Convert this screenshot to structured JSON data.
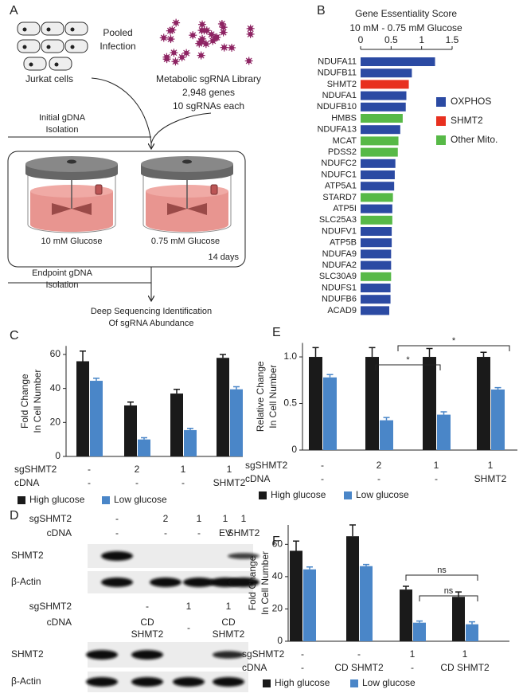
{
  "panel_labels": [
    "A",
    "B",
    "C",
    "D",
    "E",
    "F"
  ],
  "panel_a": {
    "infection": [
      "Pooled",
      "Infection"
    ],
    "cells": "Jurkat cells",
    "library": [
      "Metabolic sgRNA Library",
      "2,948 genes",
      "10 sgRNAs each"
    ],
    "initial": [
      "Initial gDNA",
      "Isolation"
    ],
    "conditions": [
      "10 mM Glucose",
      "0.75 mM Glucose"
    ],
    "duration": "14 days",
    "endpoint": [
      "Endpoint gDNA",
      "Isolation"
    ],
    "readout": [
      "Deep Sequencing Identification",
      "Of sgRNA Abundance"
    ]
  },
  "panel_d": {
    "blots": [
      {
        "rows": [
          {
            "label": "sgSHMT2",
            "lanes": [
              [
                "-"
              ],
              [
                "2"
              ],
              [
                "1"
              ],
              [
                "1"
              ],
              [
                "1"
              ]
            ]
          },
          {
            "label": "cDNA",
            "lanes": [
              [
                "-"
              ],
              [
                "-"
              ],
              [
                "-"
              ],
              [
                "EV"
              ],
              [
                "SHMT2"
              ]
            ]
          }
        ],
        "bands": [
          "SHMT2",
          "β-Actin"
        ]
      },
      {
        "rows": [
          {
            "label": "sgSHMT2",
            "lanes": [
              null,
              [
                "-"
              ],
              [
                "1"
              ],
              [
                "1"
              ]
            ]
          },
          {
            "label": "cDNA",
            "lanes": [
              null,
              [
                "CD",
                "SHMT2"
              ],
              [
                "-"
              ],
              [
                "CD",
                "SHMT2"
              ]
            ]
          }
        ],
        "bands": [
          "SHMT2",
          "β-Actin"
        ]
      }
    ]
  },
  "chart_data": [
    {
      "type": "barh",
      "title": "Gene Essentiality Score",
      "subtitle": "10 mM - 0.75 mM Glucose",
      "categories": [
        "NDUFA11",
        "NDUFB11",
        "SHMT2",
        "NDUFA1",
        "NDUFB10",
        "HMBS",
        "NDUFA13",
        "MCAT",
        "PDSS2",
        "NDUFC2",
        "NDUFC1",
        "ATP5A1",
        "STARD7",
        "ATP5I",
        "SLC25A3",
        "NDUFV1",
        "ATP5B",
        "NDUFA9",
        "NDUFA2",
        "SLC30A9",
        "NDUFS1",
        "NDUFB6",
        "ACAD9"
      ],
      "values": [
        1.22,
        0.84,
        0.79,
        0.75,
        0.74,
        0.69,
        0.65,
        0.62,
        0.61,
        0.57,
        0.56,
        0.55,
        0.53,
        0.52,
        0.52,
        0.51,
        0.51,
        0.5,
        0.5,
        0.5,
        0.49,
        0.49,
        0.47
      ],
      "colors": [
        "#2b4aa3",
        "#2b4aa3",
        "#e8301f",
        "#2b4aa3",
        "#2b4aa3",
        "#57b947",
        "#2b4aa3",
        "#57b947",
        "#57b947",
        "#2b4aa3",
        "#2b4aa3",
        "#2b4aa3",
        "#57b947",
        "#2b4aa3",
        "#57b947",
        "#2b4aa3",
        "#2b4aa3",
        "#2b4aa3",
        "#2b4aa3",
        "#57b947",
        "#2b4aa3",
        "#2b4aa3",
        "#2b4aa3"
      ],
      "xlim": [
        0,
        1.5
      ],
      "xticks": [
        0,
        0.5,
        1,
        1.5
      ],
      "legend": [
        {
          "name": "OXPHOS",
          "color": "#2b4aa3"
        },
        {
          "name": "SHMT2",
          "color": "#e8301f"
        },
        {
          "name": "Other Mito.",
          "color": "#57b947"
        }
      ]
    },
    {
      "type": "bar",
      "ylabel": [
        "Fold Change",
        "In Cell Number"
      ],
      "category_rows": [
        {
          "label": "sgSHMT2",
          "labels": [
            "-",
            "2",
            "1",
            "1"
          ]
        },
        {
          "label": "cDNA",
          "labels": [
            "-",
            "-",
            "-",
            "SHMT2"
          ]
        }
      ],
      "series": [
        {
          "name": "High glucose",
          "color": "#1a1a1a",
          "values": [
            56,
            30,
            37,
            58
          ],
          "errors": [
            6,
            2,
            2.5,
            2
          ]
        },
        {
          "name": "Low glucose",
          "color": "#4a86c8",
          "values": [
            44.5,
            10,
            15.5,
            39.5
          ],
          "errors": [
            1.5,
            1,
            1,
            1.5
          ]
        }
      ],
      "ylim": [
        0,
        65
      ],
      "yticks": [
        0,
        20,
        40,
        60
      ]
    },
    {
      "type": "bar",
      "ylabel": [
        "Relative Change",
        "In Cell Number"
      ],
      "category_rows": [
        {
          "label": "sgSHMT2",
          "labels": [
            "-",
            "2",
            "1",
            "1"
          ]
        },
        {
          "label": "cDNA",
          "labels": [
            "-",
            "-",
            "-",
            "SHMT2"
          ]
        }
      ],
      "series": [
        {
          "name": "High glucose",
          "color": "#1a1a1a",
          "values": [
            1,
            1,
            1,
            1
          ],
          "errors": [
            0.1,
            0.1,
            0.09,
            0.05
          ]
        },
        {
          "name": "Low glucose",
          "color": "#4a86c8",
          "values": [
            0.78,
            0.32,
            0.38,
            0.65
          ],
          "errors": [
            0.03,
            0.03,
            0.03,
            0.02
          ]
        }
      ],
      "ylim": [
        0,
        1.15
      ],
      "yticks": [
        0,
        0.5,
        {
          "value": 1,
          "label": "1.0"
        }
      ],
      "annotations": [
        "*",
        "*"
      ]
    },
    {
      "type": "bar",
      "ylabel": [
        "Fold Change",
        "In Cell Number"
      ],
      "category_rows": [
        {
          "label": "sgSHMT2",
          "labels": [
            "-",
            "-",
            "1",
            "1"
          ]
        },
        {
          "label": "cDNA",
          "labels": [
            "-",
            "CD SHMT2",
            "-",
            "CD SHMT2"
          ]
        }
      ],
      "series": [
        {
          "name": "High glucose",
          "color": "#1a1a1a",
          "values": [
            56,
            65,
            32,
            27.5
          ],
          "errors": [
            6,
            7,
            2,
            3
          ]
        },
        {
          "name": "Low glucose",
          "color": "#4a86c8",
          "values": [
            44.5,
            46.5,
            11.5,
            10.5
          ],
          "errors": [
            1.5,
            1,
            1,
            1.5
          ]
        }
      ],
      "ylim": [
        0,
        72
      ],
      "yticks": [
        0,
        20,
        40,
        60
      ],
      "annotations": [
        "ns",
        "ns"
      ]
    }
  ]
}
